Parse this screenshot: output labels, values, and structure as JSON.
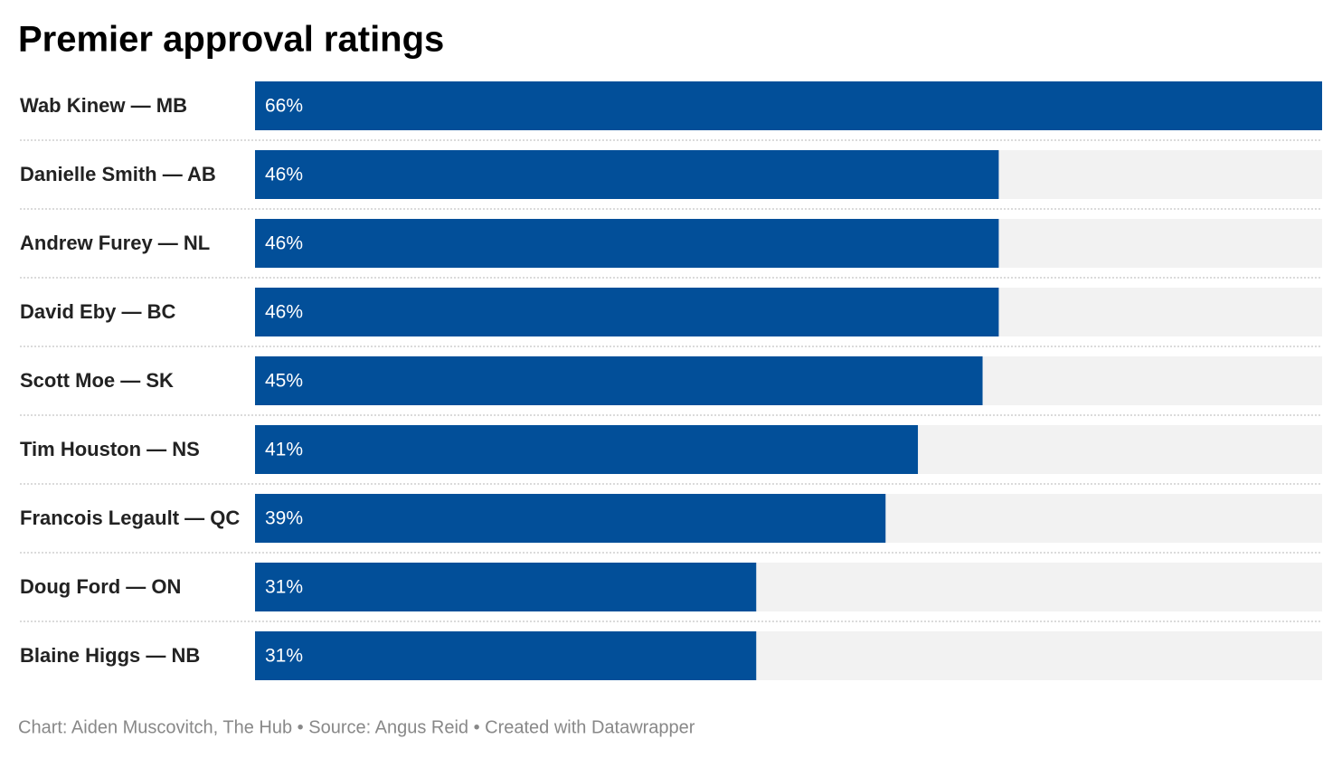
{
  "chart_data": {
    "type": "bar",
    "orientation": "horizontal",
    "title": "Premier approval ratings",
    "categories": [
      "Wab Kinew — MB",
      "Danielle Smith — AB",
      "Andrew Furey — NL",
      "David Eby — BC",
      "Scott Moe — SK",
      "Tim Houston — NS",
      "Francois Legault — QC",
      "Doug Ford — ON",
      "Blaine Higgs — NB"
    ],
    "values": [
      66,
      46,
      46,
      46,
      45,
      41,
      39,
      31,
      31
    ],
    "value_labels": [
      "66%",
      "46%",
      "46%",
      "46%",
      "45%",
      "41%",
      "39%",
      "31%",
      "31%"
    ],
    "color": "#024f99",
    "xlim": [
      0,
      66
    ],
    "footer": "Chart: Aiden Muscovitch, The Hub • Source: Angus Reid • Created with Datawrapper"
  }
}
